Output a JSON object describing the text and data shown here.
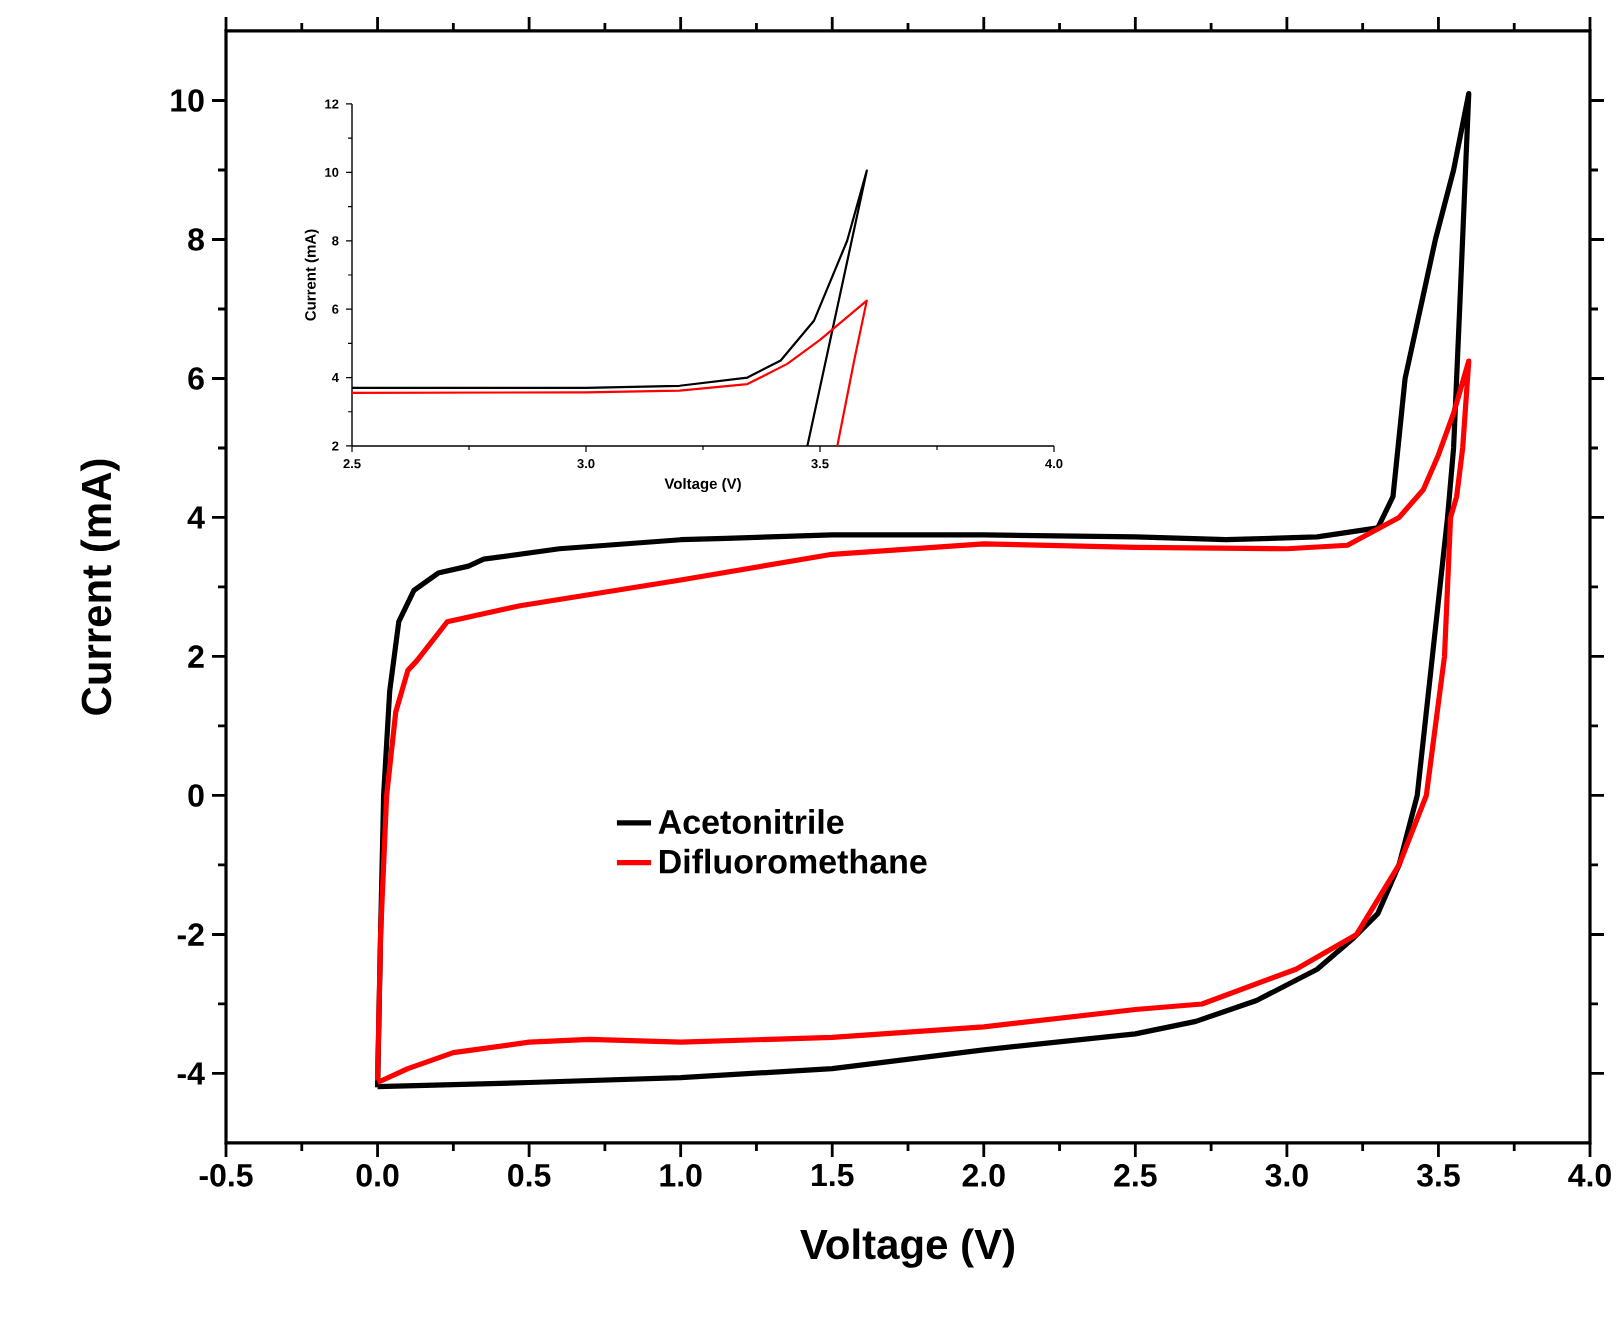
{
  "chart_data": [
    {
      "type": "line",
      "xlabel": "Voltage (V)",
      "ylabel": "Current (mA)",
      "xlim": [
        -0.5,
        4.0
      ],
      "ylim": [
        -5,
        11
      ],
      "xticks": [
        -0.5,
        {
          "value": 0,
          "label": "0.0"
        },
        0.5,
        {
          "value": 1,
          "label": "1.0"
        },
        1.5,
        {
          "value": 2,
          "label": "2.0"
        },
        2.5,
        {
          "value": 3,
          "label": "3.0"
        },
        3.5,
        {
          "value": 4,
          "label": "4.0"
        }
      ],
      "yticks": [
        -4,
        -2,
        0,
        2,
        4,
        6,
        8,
        10
      ],
      "legend": "center",
      "line_style": "solid",
      "series": [
        {
          "name": "Acetonitrile",
          "color": "#000000",
          "x": [
            0,
            0.01,
            0.02,
            0.04,
            0.07,
            0.12,
            0.2,
            0.3,
            0.35,
            0.6,
            1.0,
            1.15,
            1.5,
            2.0,
            2.5,
            2.8,
            3.1,
            3.3,
            3.35,
            3.39,
            3.45,
            3.49,
            3.55,
            3.6,
            3.57,
            3.55,
            3.53,
            3.48,
            3.43,
            3.37,
            3.3,
            3.22,
            3.1,
            2.9,
            2.7,
            2.5,
            2.0,
            1.5,
            1.0,
            0.5,
            0
          ],
          "values": [
            -4.2,
            -2,
            0,
            1.5,
            2.5,
            2.95,
            3.2,
            3.3,
            3.4,
            3.55,
            3.68,
            3.7,
            3.75,
            3.75,
            3.72,
            3.68,
            3.72,
            3.85,
            4.3,
            6,
            7.2,
            8,
            9,
            10.1,
            7,
            5,
            4,
            2,
            0,
            -1,
            -1.7,
            -2.05,
            -2.5,
            -2.95,
            -3.25,
            -3.43,
            -3.66,
            -3.93,
            -4.06,
            -4.13,
            -4.19
          ]
        },
        {
          "name": "Difluoromethane",
          "color": "#ff0000",
          "x": [
            0,
            0.01,
            0.03,
            0.06,
            0.1,
            0.13,
            0.23,
            0.47,
            1.0,
            1.5,
            2.0,
            2.5,
            3.0,
            3.2,
            3.37,
            3.45,
            3.5,
            3.55,
            3.6,
            3.58,
            3.56,
            3.54,
            3.52,
            3.46,
            3.37,
            3.23,
            3.03,
            2.72,
            2.5,
            2.0,
            1.5,
            1.0,
            0.7,
            0.5,
            0.25,
            0.1,
            0
          ],
          "values": [
            -4.1,
            -2,
            0,
            1.2,
            1.8,
            1.94,
            2.5,
            2.73,
            3.1,
            3.47,
            3.62,
            3.57,
            3.55,
            3.6,
            4.0,
            4.4,
            4.9,
            5.5,
            6.25,
            5,
            4.3,
            4,
            2,
            0,
            -1,
            -2,
            -2.5,
            -3,
            -3.08,
            -3.33,
            -3.48,
            -3.55,
            -3.51,
            -3.55,
            -3.7,
            -3.93,
            -4.13
          ]
        }
      ]
    },
    {
      "type": "line",
      "xlabel": "Voltage (V)",
      "ylabel": "Current (mA)",
      "xlim": [
        2.5,
        4.0
      ],
      "ylim": [
        2,
        12
      ],
      "xticks": [
        2.5,
        {
          "value": 3,
          "label": "3.0"
        },
        3.5,
        {
          "value": 4,
          "label": "4.0"
        }
      ],
      "yticks": [
        2,
        4,
        6,
        8,
        10,
        12
      ],
      "line_style": "solid",
      "series": [
        {
          "color": "#000000",
          "x": [
            2.5,
            3.0,
            3.2,
            3.345,
            3.416,
            3.487,
            3.558,
            3.6,
            3.473
          ],
          "values": [
            3.7,
            3.7,
            3.76,
            4.0,
            4.5,
            5.66,
            8.0,
            10.05,
            2
          ]
        },
        {
          "color": "#ff0000",
          "x": [
            2.5,
            3.0,
            3.2,
            3.345,
            3.43,
            3.5,
            3.6,
            3.573,
            3.537
          ],
          "values": [
            3.55,
            3.57,
            3.62,
            3.81,
            4.4,
            5.1,
            6.25,
            4.5,
            2
          ]
        }
      ]
    }
  ]
}
